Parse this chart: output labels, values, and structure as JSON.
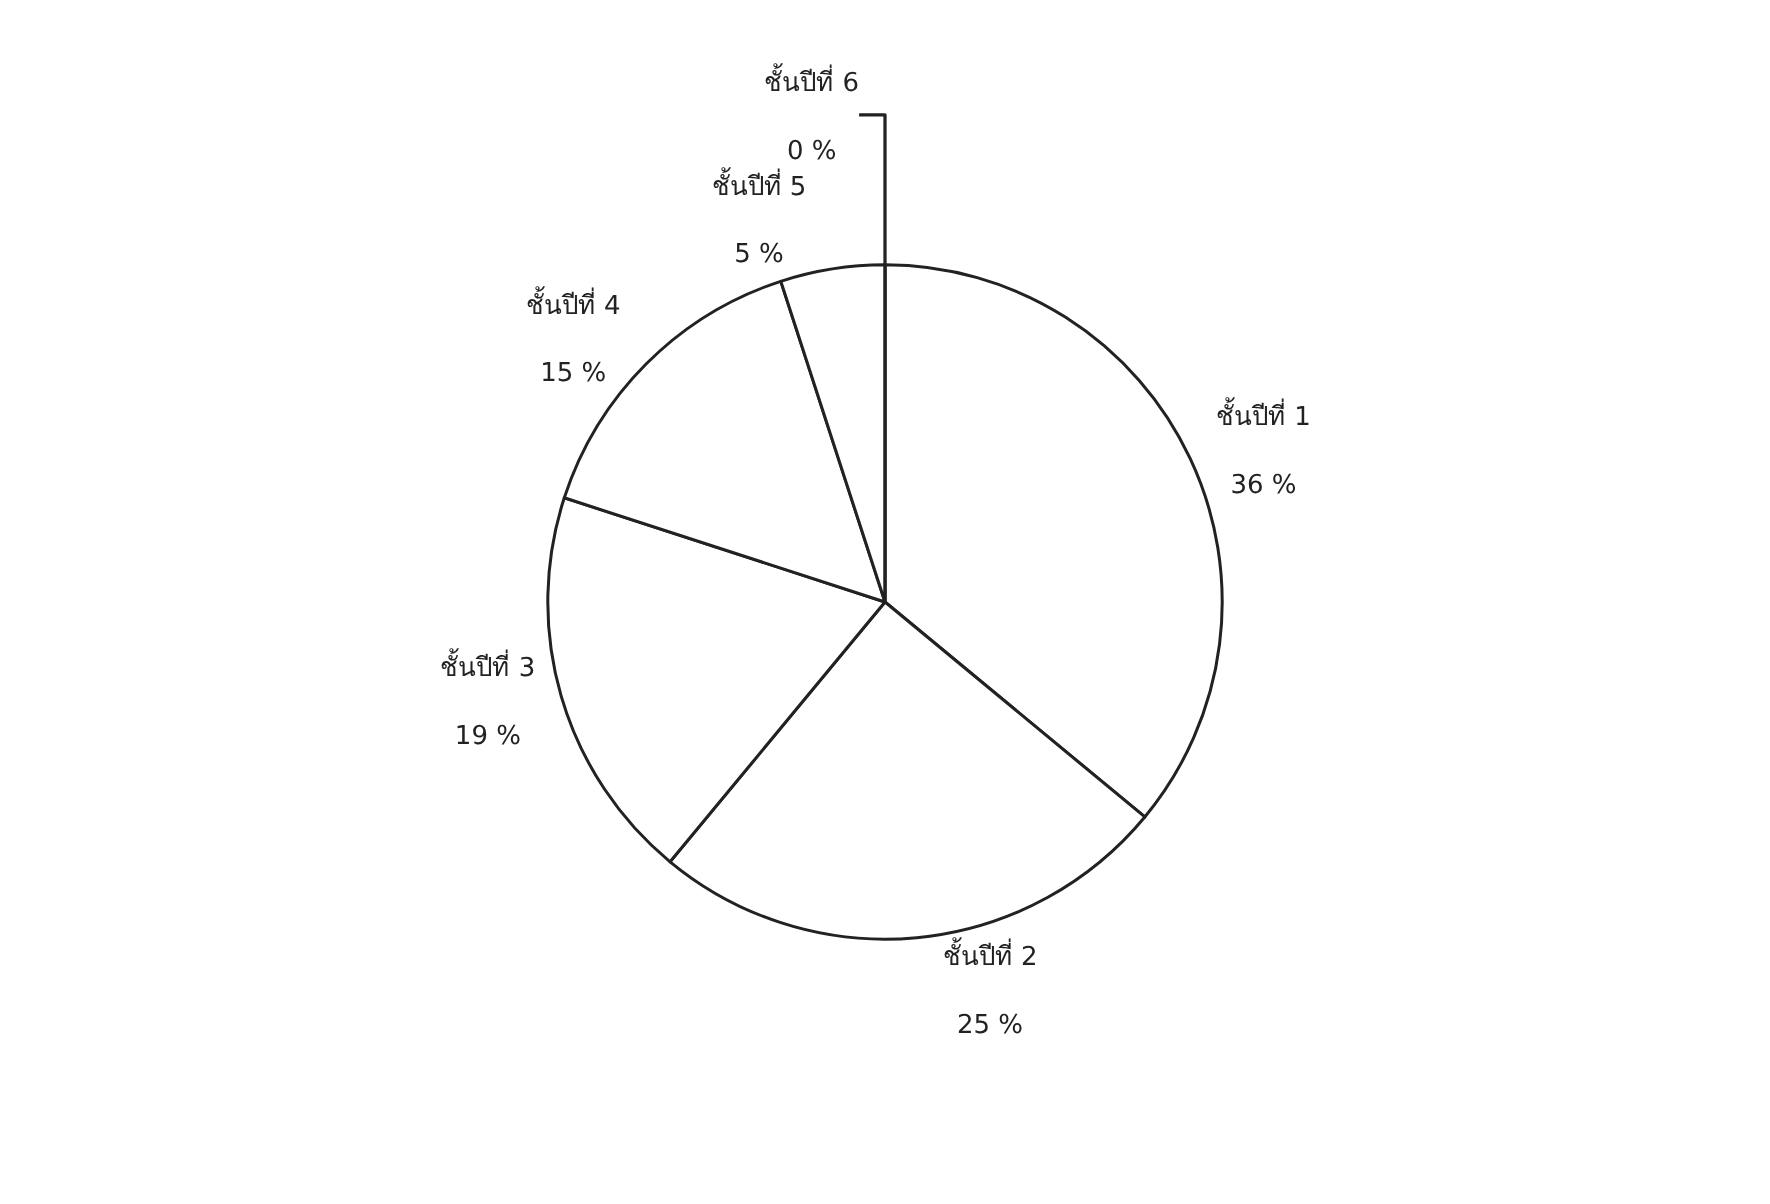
{
  "chart_data": {
    "type": "pie",
    "categories": [
      "ชั้นปีที่ 1",
      "ชั้นปีที่ 2",
      "ชั้นปีที่ 3",
      "ชั้นปีที่ 4",
      "ชั้นปีที่ 5",
      "ชั้นปีที่ 6"
    ],
    "values": [
      36,
      25,
      19,
      15,
      5,
      0
    ],
    "value_labels": [
      "36 %",
      "25 %",
      "19 %",
      "15 %",
      "5 %",
      "0 %"
    ],
    "colors": [
      "#ffffff",
      "#ffffff",
      "#ffffff",
      "#ffffff",
      "#ffffff",
      "#ffffff"
    ],
    "legend": false
  }
}
